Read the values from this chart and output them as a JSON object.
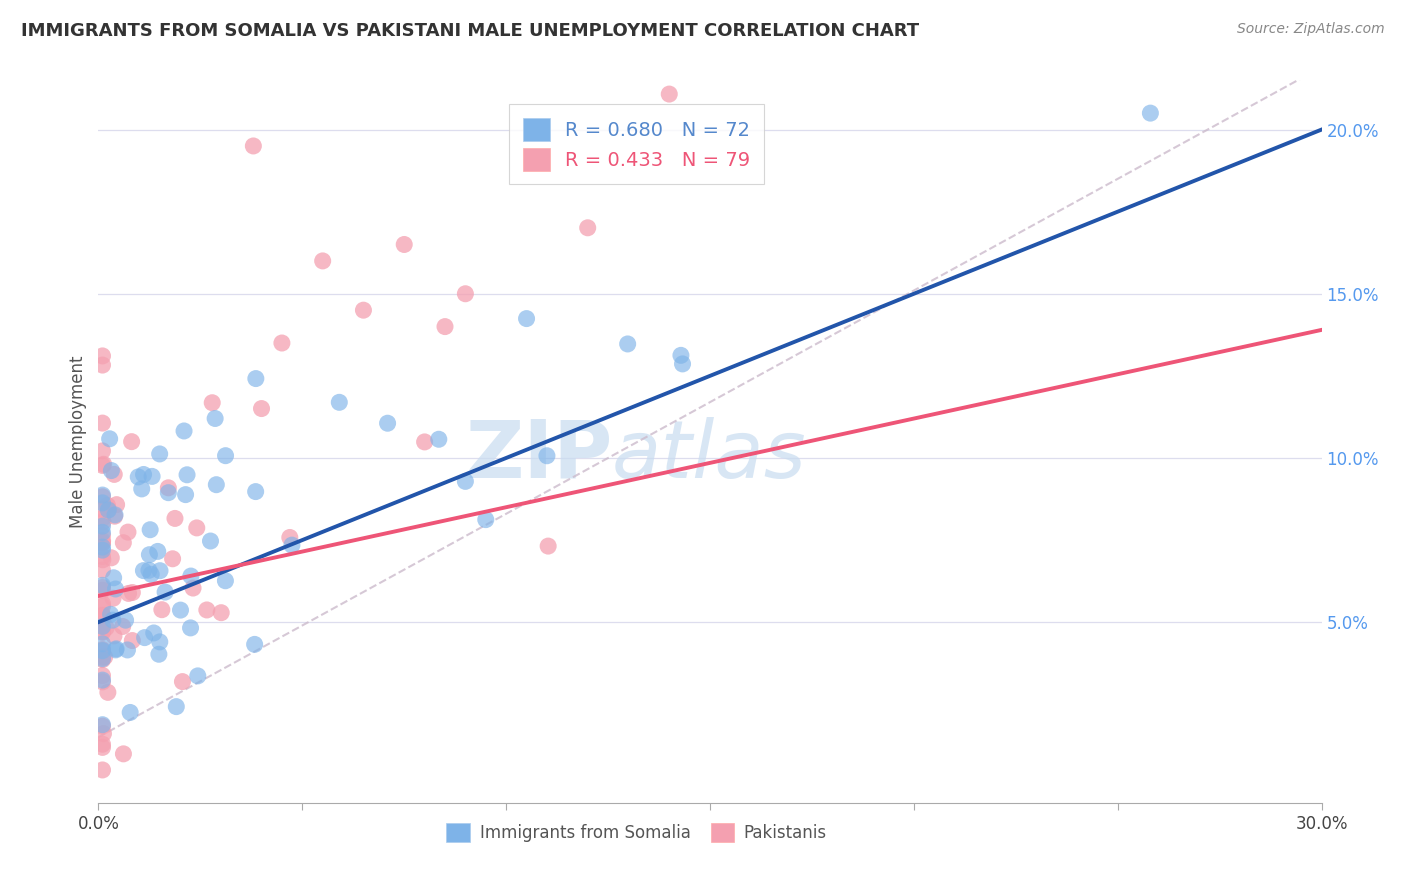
{
  "title": "IMMIGRANTS FROM SOMALIA VS PAKISTANI MALE UNEMPLOYMENT CORRELATION CHART",
  "source": "Source: ZipAtlas.com",
  "ylabel": "Male Unemployment",
  "right_yticks": [
    "20.0%",
    "15.0%",
    "10.0%",
    "5.0%"
  ],
  "right_ytick_vals": [
    0.2,
    0.15,
    0.1,
    0.05
  ],
  "xmin": 0.0,
  "xmax": 0.3,
  "ymin": -0.005,
  "ymax": 0.215,
  "color_blue": "#7EB3E8",
  "color_pink": "#F4A0B0",
  "color_blue_line": "#2255AA",
  "color_pink_line": "#EE5577",
  "color_dashed": "#CCBBCC",
  "watermark_zip": "ZIP",
  "watermark_atlas": "atlas",
  "seed": 99,
  "somalia_n": 72,
  "pakistan_n": 79
}
